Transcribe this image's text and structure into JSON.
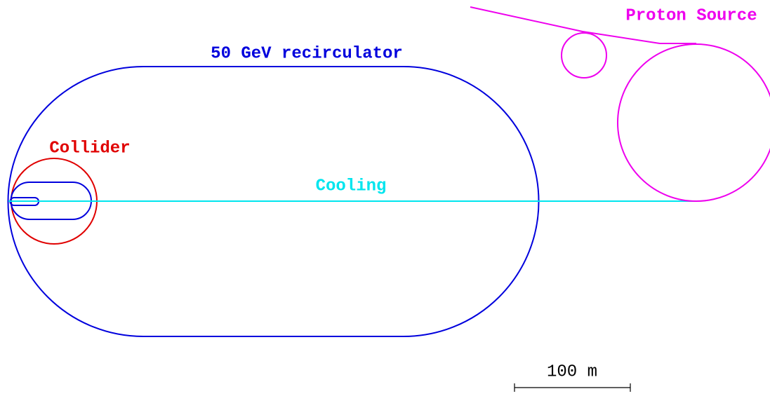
{
  "labels": {
    "proton_source": "Proton Source",
    "recirculator": "50 GeV recirculator",
    "collider": "Collider",
    "cooling": "Cooling",
    "scale": "100 m"
  }
}
